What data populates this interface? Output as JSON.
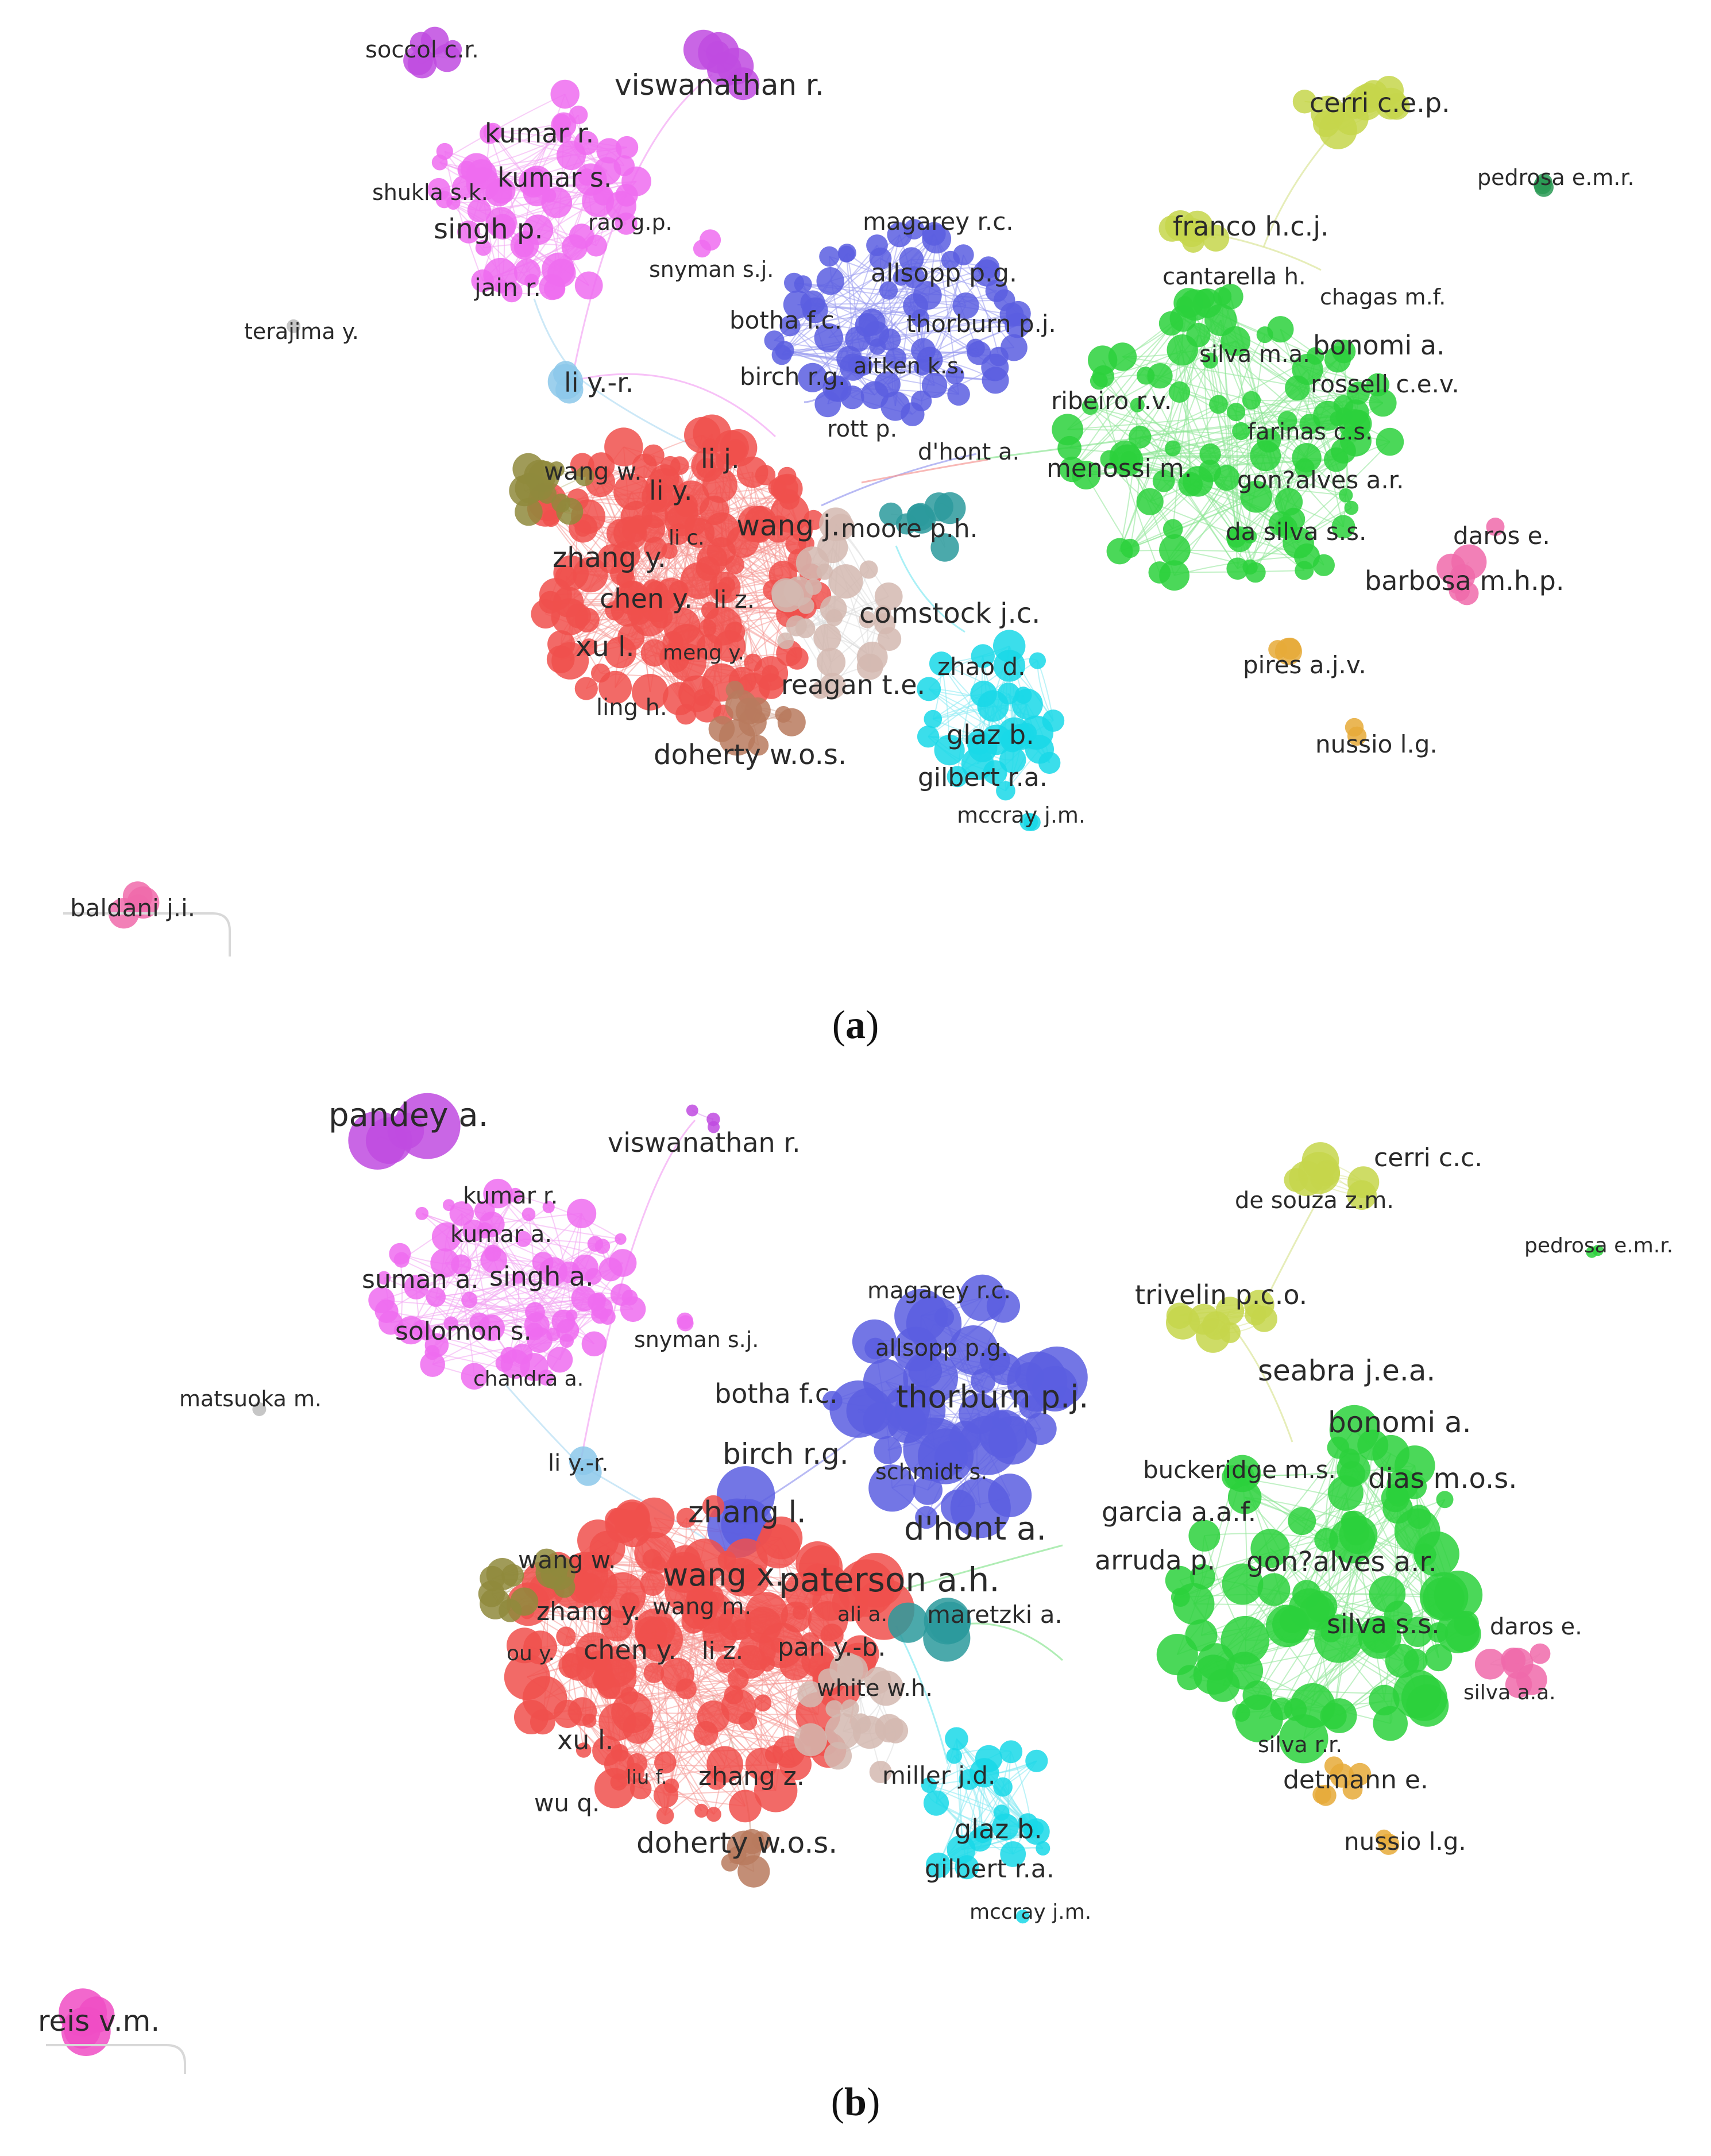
{
  "figure": {
    "panel_a": {
      "caption_letter": "a",
      "labels": {
        "soccol": "soccol c.r.",
        "viswanathan": "viswanathan r.",
        "kumar_r": "kumar r.",
        "kumar_s": "kumar s.",
        "shukla": "shukla s.k.",
        "rao": "rao g.p.",
        "singh": "singh p.",
        "jain": "jain r.",
        "snyman": "snyman s.j.",
        "terajima": "terajima y.",
        "li_yr": "li y.-r.",
        "magarey": "magarey r.c.",
        "allsopp": "allsopp p.g.",
        "botha": "botha f.c.",
        "thorburn": "thorburn p.j.",
        "birch": "birch r.g.",
        "aitken": "aitken k.s.",
        "rott": "rott p.",
        "dhont": "d'hont a.",
        "cerri": "cerri c.e.p.",
        "pedrosa": "pedrosa e.m.r.",
        "franco": "franco h.c.j.",
        "cantarella": "cantarella h.",
        "chagas": "chagas m.f.",
        "silva_ma": "silva m.a.",
        "bonomi": "bonomi a.",
        "rossell": "rossell c.e.v.",
        "ribeiro": "ribeiro r.v.",
        "farinas": "farinas c.s.",
        "menossi": "menossi m.",
        "goncalves": "gon?alves a.r.",
        "da_silva": "da silva s.s.",
        "daros": "daros e.",
        "barbosa": "barbosa m.h.p.",
        "pires": "pires a.j.v.",
        "nussio": "nussio l.g.",
        "li_j": "li j.",
        "wang_w": "wang w.",
        "li_y": "li y.",
        "li_c": "li c.",
        "wang_j": "wang j.",
        "moore": "moore p.h.",
        "zhang_y": "zhang y.",
        "chen_y": "chen y.",
        "li_z": "li z.",
        "comstock": "comstock j.c.",
        "xu": "xu l.",
        "meng": "meng y.",
        "zhao": "zhao d.",
        "reagan": "reagan t.e.",
        "ling": "ling h.",
        "glaz": "glaz b.",
        "doherty": "doherty w.o.s.",
        "gilbert": "gilbert r.a.",
        "mccray": "mccray j.m.",
        "baldani": "baldani j.i."
      }
    },
    "panel_b": {
      "caption_letter": "b",
      "labels": {
        "pandey": "pandey a.",
        "viswanathan": "viswanathan r.",
        "kumar_r": "kumar r.",
        "kumar_a": "kumar a.",
        "suman": "suman a.",
        "singh": "singh a.",
        "solomon": "solomon s.",
        "snyman": "snyman s.j.",
        "chandra": "chandra a.",
        "matsuoka": "matsuoka m.",
        "li_yr": "li y.-r.",
        "magarey": "magarey r.c.",
        "allsopp": "allsopp p.g.",
        "botha": "botha f.c.",
        "thorburn": "thorburn p.j.",
        "birch": "birch r.g.",
        "schmidt": "schmidt s.",
        "zhang_l": "zhang l.",
        "dhont": "d'hont a.",
        "cerri": "cerri c.c.",
        "de_souza": "de souza z.m.",
        "pedrosa": "pedrosa e.m.r.",
        "trivelin": "trivelin p.c.o.",
        "seabra": "seabra j.e.a.",
        "bonomi": "bonomi a.",
        "buckeridge": "buckeridge m.s.",
        "dias": "dias m.o.s.",
        "garcia": "garcia a.a.f.",
        "arruda": "arruda p.",
        "goncalves": "gon?alves a.r.",
        "wang_w": "wang w.",
        "wang_x": "wang x.",
        "paterson": "paterson a.h.",
        "zhang_y": "zhang y.",
        "wang_m": "wang m.",
        "ali": "ali a.",
        "maretzki": "maretzki a.",
        "ou": "ou y.",
        "chen_y": "chen y.",
        "li_z": "li z.",
        "pan": "pan y.-b.",
        "white": "white w.h.",
        "silva_ss": "silva s.s.",
        "daros": "daros e.",
        "silva_aa": "silva a.a.",
        "silva_rr": "silva r.r.",
        "xu": "xu l.",
        "liu": "liu f.",
        "zhang_z": "zhang z.",
        "miller": "miller j.d.",
        "detmann": "detmann e.",
        "wu": "wu q.",
        "glaz": "glaz b.",
        "nussio": "nussio l.g.",
        "doherty": "doherty w.o.s.",
        "gilbert": "gilbert r.a.",
        "mccray": "mccray j.m.",
        "reis": "reis v.m."
      }
    }
  }
}
